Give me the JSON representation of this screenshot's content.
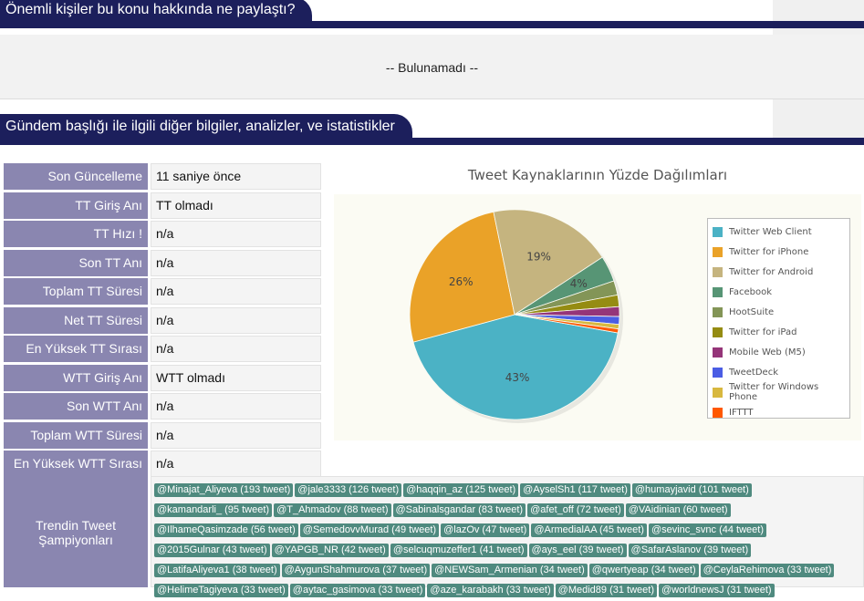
{
  "section1": {
    "title": "Önemli kişiler bu konu hakkında ne paylaştı?",
    "empty_text": "-- Bulunamadı --"
  },
  "section2": {
    "title": "Gündem başlığı ile ilgili diğer bilgiler, analizler, ve istatistikler"
  },
  "stats": [
    {
      "label": "Son Güncelleme",
      "value": "11 saniye önce"
    },
    {
      "label": "TT Giriş Anı",
      "value": "TT olmadı"
    },
    {
      "label": "TT Hızı !",
      "value": "n/a"
    },
    {
      "label": "Son TT Anı",
      "value": "n/a"
    },
    {
      "label": "Toplam TT Süresi",
      "value": "n/a"
    },
    {
      "label": "Net TT Süresi",
      "value": "n/a"
    },
    {
      "label": "En Yüksek TT Sırası",
      "value": "n/a"
    },
    {
      "label": "WTT Giriş Anı",
      "value": "WTT olmadı"
    },
    {
      "label": "Son WTT Anı",
      "value": "n/a"
    },
    {
      "label": "Toplam WTT Süresi",
      "value": "n/a"
    },
    {
      "label": "En Yüksek WTT Sırası",
      "value": "n/a"
    }
  ],
  "champions": {
    "label_line1": "Trendin Tweet",
    "label_line2": "Şampiyonları",
    "users": [
      "@Minajat_Aliyeva (193 tweet)",
      "@jale3333 (126 tweet)",
      "@haqqin_az (125 tweet)",
      "@AyselSh1 (117 tweet)",
      "@humayjavid (101 tweet)",
      "@kamandarli_ (95 tweet)",
      "@T_Ahmadov (88 tweet)",
      "@Sabinalsgandar (83 tweet)",
      "@afet_off (72 tweet)",
      "@VAidinian (60 tweet)",
      "@IlhameQasimzade (56 tweet)",
      "@SemedovvMurad (49 tweet)",
      "@lazOv (47 tweet)",
      "@ArmedialAA (45 tweet)",
      "@sevinc_svnc (44 tweet)",
      "@2015Gulnar (43 tweet)",
      "@YAPGB_NR (42 tweet)",
      "@selcuqmuzeffer1 (41 tweet)",
      "@ays_eel (39 tweet)",
      "@SafarAslanov (39 tweet)",
      "@LatifaAliyeva1 (38 tweet)",
      "@AygunShahmurova (37 tweet)",
      "@NEWSam_Armenian (34 tweet)",
      "@qwertyeap (34 tweet)",
      "@CeylaRehimova (33 tweet)",
      "@HelimeTagiyeva (33 tweet)",
      "@aytac_gasimova (33 tweet)",
      "@aze_karabakh (33 tweet)",
      "@Medid89 (31 tweet)",
      "@worldnewsJ (31 tweet)"
    ]
  },
  "chart_data": {
    "type": "pie",
    "title": "Tweet Kaynaklarının Yüzde Dağılımları",
    "legend_position": "right",
    "slices": [
      {
        "name": "Twitter Web Client",
        "value": 43,
        "color": "#4bb2c5",
        "label": "43%"
      },
      {
        "name": "Twitter for iPhone",
        "value": 26,
        "color": "#eaa228",
        "label": "26%"
      },
      {
        "name": "Twitter for Android",
        "value": 19,
        "color": "#c5b47f",
        "label": "19%"
      },
      {
        "name": "Facebook",
        "value": 4,
        "color": "#579575",
        "label": "4%"
      },
      {
        "name": "HootSuite",
        "value": 2.2,
        "color": "#839557",
        "label": ""
      },
      {
        "name": "Twitter for iPad",
        "value": 1.8,
        "color": "#958c12",
        "label": ""
      },
      {
        "name": "Mobile Web (M5)",
        "value": 1.5,
        "color": "#953579",
        "label": ""
      },
      {
        "name": "TweetDeck",
        "value": 1.2,
        "color": "#4b5de4",
        "label": ""
      },
      {
        "name": "Twitter for Windows Phone",
        "value": 0.7,
        "color": "#d8b83f",
        "label": ""
      },
      {
        "name": "IFTTT",
        "value": 0.6,
        "color": "#ff5800",
        "label": ""
      }
    ]
  }
}
